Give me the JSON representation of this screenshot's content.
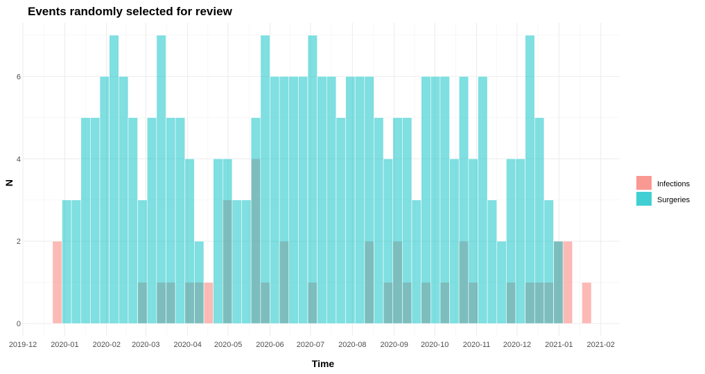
{
  "chart_data": {
    "type": "bar",
    "title": "Events randomly selected for review",
    "xlabel": "Time",
    "ylabel": "N",
    "x_unit": "week start date",
    "xlim": [
      "2019-12-01",
      "2021-02-15"
    ],
    "ylim": [
      -0.3,
      7.3
    ],
    "y_ticks": [
      0,
      2,
      4,
      6
    ],
    "x_ticks": [
      {
        "date": "2019-12-01",
        "label": "2019-12"
      },
      {
        "date": "2020-01-01",
        "label": "2020-01"
      },
      {
        "date": "2020-02-01",
        "label": "2020-02"
      },
      {
        "date": "2020-03-01",
        "label": "2020-03"
      },
      {
        "date": "2020-04-01",
        "label": "2020-04"
      },
      {
        "date": "2020-05-01",
        "label": "2020-05"
      },
      {
        "date": "2020-06-01",
        "label": "2020-06"
      },
      {
        "date": "2020-07-01",
        "label": "2020-07"
      },
      {
        "date": "2020-08-01",
        "label": "2020-08"
      },
      {
        "date": "2020-09-01",
        "label": "2020-09"
      },
      {
        "date": "2020-10-01",
        "label": "2020-10"
      },
      {
        "date": "2020-11-01",
        "label": "2020-11"
      },
      {
        "date": "2020-12-01",
        "label": "2020-12"
      },
      {
        "date": "2021-01-01",
        "label": "2021-01"
      },
      {
        "date": "2021-02-01",
        "label": "2021-02"
      }
    ],
    "grid": true,
    "legend_position": "right",
    "x": [
      "2019-12-23",
      "2019-12-30",
      "2020-01-06",
      "2020-01-13",
      "2020-01-20",
      "2020-01-27",
      "2020-02-03",
      "2020-02-10",
      "2020-02-17",
      "2020-02-24",
      "2020-03-02",
      "2020-03-09",
      "2020-03-16",
      "2020-03-23",
      "2020-03-30",
      "2020-04-06",
      "2020-04-13",
      "2020-04-20",
      "2020-04-27",
      "2020-05-04",
      "2020-05-11",
      "2020-05-18",
      "2020-05-25",
      "2020-06-01",
      "2020-06-08",
      "2020-06-15",
      "2020-06-22",
      "2020-06-29",
      "2020-07-06",
      "2020-07-13",
      "2020-07-20",
      "2020-07-27",
      "2020-08-03",
      "2020-08-10",
      "2020-08-17",
      "2020-08-24",
      "2020-08-31",
      "2020-09-07",
      "2020-09-14",
      "2020-09-21",
      "2020-09-28",
      "2020-10-05",
      "2020-10-12",
      "2020-10-19",
      "2020-10-26",
      "2020-11-02",
      "2020-11-09",
      "2020-11-16",
      "2020-11-23",
      "2020-11-30",
      "2020-12-07",
      "2020-12-14",
      "2020-12-21",
      "2020-12-28",
      "2021-01-04",
      "2021-01-11",
      "2021-01-18",
      "2021-01-25"
    ],
    "series": [
      {
        "name": "Infections",
        "color": "#f8766d",
        "values": [
          2,
          0,
          0,
          0,
          0,
          0,
          0,
          0,
          0,
          1,
          0,
          1,
          1,
          0,
          1,
          1,
          1,
          0,
          3,
          0,
          0,
          4,
          1,
          0,
          2,
          0,
          0,
          1,
          0,
          0,
          0,
          0,
          0,
          2,
          0,
          1,
          2,
          1,
          0,
          1,
          0,
          1,
          0,
          2,
          1,
          0,
          0,
          0,
          1,
          0,
          1,
          1,
          1,
          2,
          2,
          0,
          1,
          0
        ]
      },
      {
        "name": "Surgeries",
        "color": "#00bfc4",
        "values": [
          0,
          3,
          3,
          5,
          5,
          6,
          7,
          6,
          5,
          3,
          5,
          7,
          5,
          5,
          4,
          2,
          0,
          4,
          4,
          3,
          3,
          5,
          7,
          6,
          6,
          6,
          6,
          7,
          6,
          6,
          5,
          6,
          6,
          6,
          5,
          4,
          5,
          5,
          3,
          6,
          6,
          6,
          4,
          6,
          4,
          6,
          3,
          2,
          4,
          4,
          7,
          5,
          3,
          2,
          0,
          0,
          0,
          0
        ]
      }
    ]
  }
}
